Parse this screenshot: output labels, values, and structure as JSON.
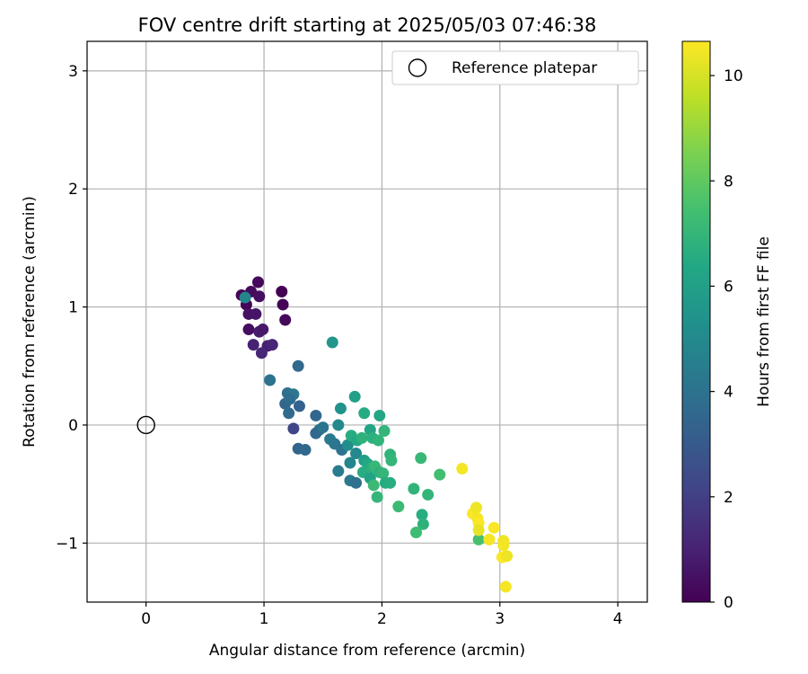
{
  "chart_data": {
    "type": "scatter",
    "title": "FOV centre drift starting at 2025/05/03 07:46:38",
    "xlabel": "Angular distance from reference (arcmin)",
    "ylabel": "Rotation from reference (arcmin)",
    "xlim": [
      -0.5,
      4.25
    ],
    "ylim": [
      -1.5,
      3.25
    ],
    "xticks": [
      0,
      1,
      2,
      3,
      4
    ],
    "xtick_labels": [
      "0",
      "1",
      "2",
      "3",
      "4"
    ],
    "yticks": [
      -1,
      0,
      1,
      2,
      3
    ],
    "ytick_labels": [
      "−1",
      "0",
      "1",
      "2",
      "3"
    ],
    "grid": true,
    "legend": {
      "position": "top-right",
      "entries": [
        "Reference platepar"
      ]
    },
    "reference_point": {
      "x": 0,
      "y": 0,
      "label": "Reference platepar"
    },
    "colorbar": {
      "label": "Hours from first FF file",
      "colormap": "viridis",
      "range": [
        0,
        10.65
      ],
      "ticks": [
        0,
        2,
        4,
        6,
        8,
        10
      ],
      "tick_labels": [
        "0",
        "2",
        "4",
        "6",
        "8",
        "10"
      ]
    },
    "points": [
      {
        "x": 0.81,
        "y": 1.1,
        "h": 0.0
      },
      {
        "x": 0.95,
        "y": 1.21,
        "h": 0.2
      },
      {
        "x": 0.89,
        "y": 1.13,
        "h": 0.3
      },
      {
        "x": 0.96,
        "y": 1.09,
        "h": 0.4
      },
      {
        "x": 0.85,
        "y": 1.02,
        "h": 0.1
      },
      {
        "x": 0.87,
        "y": 0.94,
        "h": 0.5
      },
      {
        "x": 0.93,
        "y": 0.94,
        "h": 0.6
      },
      {
        "x": 0.87,
        "y": 0.81,
        "h": 0.4
      },
      {
        "x": 0.96,
        "y": 0.79,
        "h": 0.8
      },
      {
        "x": 0.99,
        "y": 0.81,
        "h": 0.7
      },
      {
        "x": 0.91,
        "y": 0.68,
        "h": 1.0
      },
      {
        "x": 1.03,
        "y": 0.67,
        "h": 0.9
      },
      {
        "x": 1.07,
        "y": 0.68,
        "h": 1.1
      },
      {
        "x": 0.98,
        "y": 0.61,
        "h": 1.2
      },
      {
        "x": 1.15,
        "y": 1.13,
        "h": 0.0
      },
      {
        "x": 1.16,
        "y": 1.02,
        "h": 0.1
      },
      {
        "x": 1.18,
        "y": 0.89,
        "h": 0.2
      },
      {
        "x": 0.84,
        "y": 1.08,
        "h": 4.8
      },
      {
        "x": 1.05,
        "y": 0.38,
        "h": 4.0
      },
      {
        "x": 1.29,
        "y": 0.5,
        "h": 3.6
      },
      {
        "x": 1.2,
        "y": 0.27,
        "h": 3.9
      },
      {
        "x": 1.25,
        "y": 0.26,
        "h": 4.2
      },
      {
        "x": 1.18,
        "y": 0.18,
        "h": 3.5
      },
      {
        "x": 1.22,
        "y": 0.22,
        "h": 3.8
      },
      {
        "x": 1.3,
        "y": 0.16,
        "h": 3.3
      },
      {
        "x": 1.21,
        "y": 0.1,
        "h": 3.7
      },
      {
        "x": 1.25,
        "y": -0.03,
        "h": 2.2
      },
      {
        "x": 1.29,
        "y": -0.2,
        "h": 3.4
      },
      {
        "x": 1.35,
        "y": -0.21,
        "h": 3.6
      },
      {
        "x": 1.44,
        "y": 0.08,
        "h": 3.5
      },
      {
        "x": 1.47,
        "y": -0.04,
        "h": 3.9
      },
      {
        "x": 1.44,
        "y": -0.07,
        "h": 3.6
      },
      {
        "x": 1.5,
        "y": -0.02,
        "h": 4.1
      },
      {
        "x": 1.58,
        "y": 0.7,
        "h": 5.6
      },
      {
        "x": 1.56,
        "y": -0.12,
        "h": 4.3
      },
      {
        "x": 1.6,
        "y": -0.16,
        "h": 4.2
      },
      {
        "x": 1.63,
        "y": 0.0,
        "h": 5.0
      },
      {
        "x": 1.65,
        "y": 0.14,
        "h": 5.4
      },
      {
        "x": 1.66,
        "y": -0.21,
        "h": 4.0
      },
      {
        "x": 1.63,
        "y": -0.39,
        "h": 4.4
      },
      {
        "x": 1.71,
        "y": -0.17,
        "h": 5.2
      },
      {
        "x": 1.73,
        "y": -0.32,
        "h": 4.8
      },
      {
        "x": 1.78,
        "y": -0.24,
        "h": 5.0
      },
      {
        "x": 1.73,
        "y": -0.47,
        "h": 4.3
      },
      {
        "x": 1.78,
        "y": -0.49,
        "h": 3.9
      },
      {
        "x": 1.77,
        "y": 0.24,
        "h": 6.0
      },
      {
        "x": 1.74,
        "y": -0.09,
        "h": 6.6
      },
      {
        "x": 1.79,
        "y": -0.13,
        "h": 6.4
      },
      {
        "x": 1.83,
        "y": -0.11,
        "h": 6.8
      },
      {
        "x": 1.85,
        "y": 0.1,
        "h": 6.5
      },
      {
        "x": 1.9,
        "y": -0.04,
        "h": 6.2
      },
      {
        "x": 1.92,
        "y": -0.11,
        "h": 6.7
      },
      {
        "x": 1.97,
        "y": -0.13,
        "h": 6.9
      },
      {
        "x": 1.98,
        "y": 0.08,
        "h": 6.3
      },
      {
        "x": 2.02,
        "y": -0.05,
        "h": 7.0
      },
      {
        "x": 1.85,
        "y": -0.3,
        "h": 6.0
      },
      {
        "x": 1.88,
        "y": -0.33,
        "h": 6.4
      },
      {
        "x": 1.92,
        "y": -0.36,
        "h": 6.7
      },
      {
        "x": 1.84,
        "y": -0.4,
        "h": 6.6
      },
      {
        "x": 1.9,
        "y": -0.45,
        "h": 6.1
      },
      {
        "x": 1.94,
        "y": -0.35,
        "h": 7.1
      },
      {
        "x": 1.98,
        "y": -0.4,
        "h": 6.8
      },
      {
        "x": 2.01,
        "y": -0.41,
        "h": 7.0
      },
      {
        "x": 1.93,
        "y": -0.51,
        "h": 7.2
      },
      {
        "x": 1.96,
        "y": -0.61,
        "h": 7.0
      },
      {
        "x": 2.03,
        "y": -0.49,
        "h": 6.5
      },
      {
        "x": 2.07,
        "y": -0.25,
        "h": 6.9
      },
      {
        "x": 2.08,
        "y": -0.3,
        "h": 7.0
      },
      {
        "x": 2.07,
        "y": -0.49,
        "h": 6.6
      },
      {
        "x": 2.14,
        "y": -0.69,
        "h": 7.2
      },
      {
        "x": 2.27,
        "y": -0.54,
        "h": 6.9
      },
      {
        "x": 2.33,
        "y": -0.28,
        "h": 7.1
      },
      {
        "x": 2.34,
        "y": -0.76,
        "h": 6.6
      },
      {
        "x": 2.35,
        "y": -0.84,
        "h": 6.8
      },
      {
        "x": 2.29,
        "y": -0.91,
        "h": 7.3
      },
      {
        "x": 2.39,
        "y": -0.59,
        "h": 7.0
      },
      {
        "x": 2.49,
        "y": -0.42,
        "h": 7.4
      },
      {
        "x": 2.82,
        "y": -0.97,
        "h": 7.5
      },
      {
        "x": 2.68,
        "y": -0.37,
        "h": 10.5
      },
      {
        "x": 2.77,
        "y": -0.75,
        "h": 10.6
      },
      {
        "x": 2.8,
        "y": -0.7,
        "h": 10.4
      },
      {
        "x": 2.81,
        "y": -0.79,
        "h": 10.5
      },
      {
        "x": 2.82,
        "y": -0.83,
        "h": 10.6
      },
      {
        "x": 2.82,
        "y": -0.89,
        "h": 10.3
      },
      {
        "x": 2.91,
        "y": -0.97,
        "h": 10.5
      },
      {
        "x": 2.95,
        "y": -0.87,
        "h": 10.6
      },
      {
        "x": 3.03,
        "y": -0.98,
        "h": 10.4
      },
      {
        "x": 3.03,
        "y": -1.02,
        "h": 10.5
      },
      {
        "x": 3.02,
        "y": -1.12,
        "h": 10.6
      },
      {
        "x": 3.06,
        "y": -1.11,
        "h": 10.4
      },
      {
        "x": 3.05,
        "y": -1.37,
        "h": 10.5
      }
    ]
  }
}
